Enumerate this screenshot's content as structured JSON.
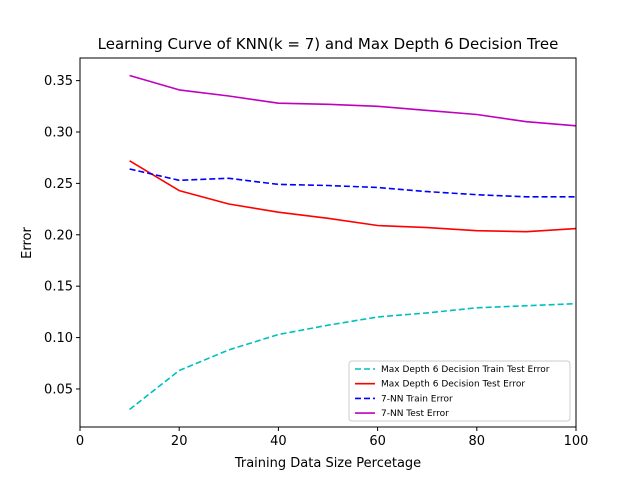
{
  "chart_data": {
    "type": "line",
    "title": "Learning Curve of KNN(k = 7) and Max Depth 6 Decision Tree",
    "xlabel": "Training Data Size Percetage",
    "ylabel": "Error",
    "xlim": [
      0,
      100
    ],
    "ylim": [
      0.013,
      0.372
    ],
    "xticks": [
      0,
      20,
      40,
      60,
      80,
      100
    ],
    "yticks": [
      0.05,
      0.1,
      0.15,
      0.2,
      0.25,
      0.3,
      0.35
    ],
    "ytick_labels": [
      "0.05",
      "0.10",
      "0.15",
      "0.20",
      "0.25",
      "0.30",
      "0.35"
    ],
    "grid": false,
    "legend_position": "lower-right",
    "x": [
      10,
      20,
      30,
      40,
      50,
      60,
      70,
      80,
      90,
      100
    ],
    "series": [
      {
        "name": "Max Depth 6 Decision Train Test Error",
        "color": "#00bfbf",
        "style": "dashed",
        "values": [
          0.03,
          0.068,
          0.088,
          0.103,
          0.112,
          0.12,
          0.124,
          0.129,
          0.131,
          0.133
        ]
      },
      {
        "name": "Max Depth 6 Decision Test Error",
        "color": "#ff0000",
        "style": "solid",
        "values": [
          0.272,
          0.243,
          0.23,
          0.222,
          0.216,
          0.209,
          0.207,
          0.204,
          0.203,
          0.206
        ]
      },
      {
        "name": "7-NN Train Error",
        "color": "#0000ff",
        "style": "dashed",
        "values": [
          0.264,
          0.253,
          0.255,
          0.249,
          0.248,
          0.246,
          0.242,
          0.239,
          0.237,
          0.237
        ]
      },
      {
        "name": "7-NN Test Error",
        "color": "#bf00bf",
        "style": "solid",
        "values": [
          0.355,
          0.341,
          0.335,
          0.328,
          0.327,
          0.325,
          0.321,
          0.317,
          0.31,
          0.306
        ]
      }
    ]
  }
}
